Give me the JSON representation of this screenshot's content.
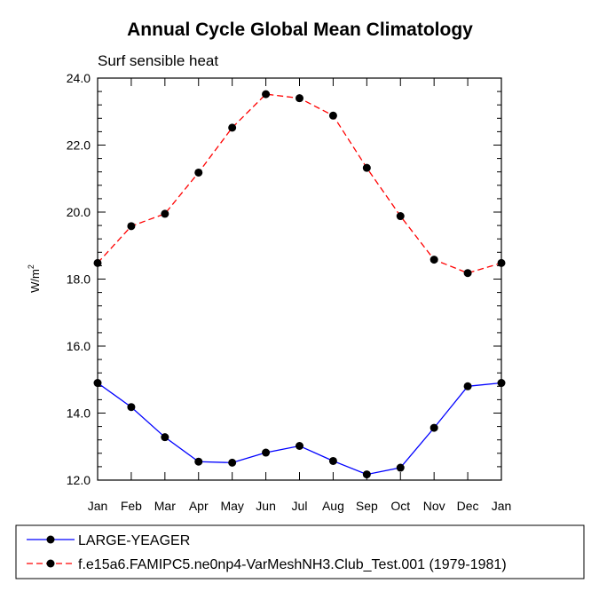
{
  "chart_data": {
    "type": "line",
    "title": "Annual Cycle Global Mean Climatology",
    "subtitle": "Surf sensible heat",
    "xlabel": "",
    "ylabel_base": "W/m",
    "ylabel_sup": "2",
    "categories": [
      "Jan",
      "Feb",
      "Mar",
      "Apr",
      "May",
      "Jun",
      "Jul",
      "Aug",
      "Sep",
      "Oct",
      "Nov",
      "Dec",
      "Jan"
    ],
    "ylim": [
      12.0,
      24.0
    ],
    "yticks": [
      "12.0",
      "14.0",
      "16.0",
      "18.0",
      "20.0",
      "22.0",
      "24.0"
    ],
    "series": [
      {
        "name": "LARGE-YEAGER",
        "color": "#0000ff",
        "dash": "solid",
        "marker": "circle",
        "values": [
          14.9,
          14.18,
          13.28,
          12.55,
          12.52,
          12.82,
          13.02,
          12.57,
          12.17,
          12.37,
          13.56,
          14.8,
          14.9
        ]
      },
      {
        "name": "f.e15a6.FAMIPC5.ne0np4-VarMeshNH3.Club_Test.001 (1979-1981)",
        "color": "#ff0000",
        "dash": "dashed",
        "marker": "circle",
        "values": [
          18.48,
          19.58,
          19.95,
          21.18,
          22.52,
          23.52,
          23.4,
          22.88,
          21.32,
          19.88,
          18.58,
          18.18,
          18.48
        ]
      }
    ],
    "grid": false,
    "legend_position": "bottom"
  }
}
